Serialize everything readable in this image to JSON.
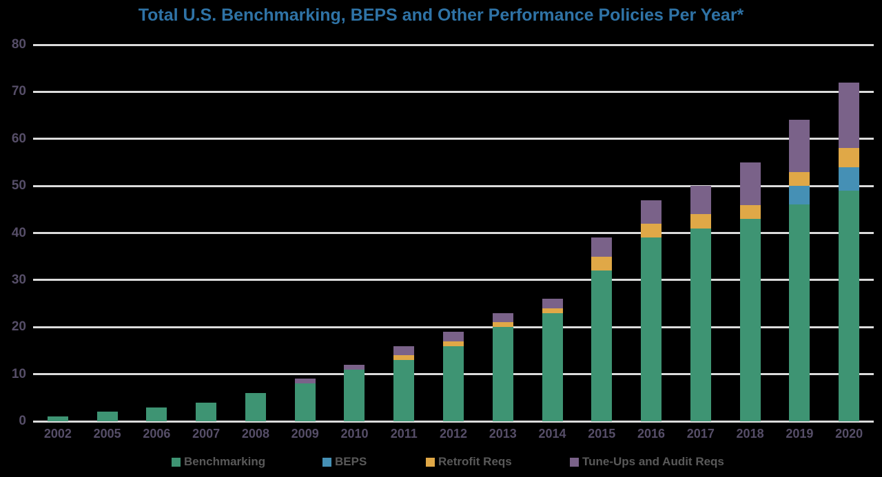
{
  "title": "Total U.S. Benchmarking, BEPS and Other Performance Policies Per Year*",
  "colors": {
    "background": "#000000",
    "title": "#2F73A6",
    "grid": "#DCDCDC",
    "axis_label": "#564E68",
    "legend_text": "#595959",
    "benchmarking": "#3E9473",
    "beps": "#4590B5",
    "retrofit": "#E0A847",
    "tuneups": "#7A6289"
  },
  "chart_data": {
    "type": "bar",
    "stacked": true,
    "title": "Total U.S. Benchmarking, BEPS and Other Performance Policies Per Year*",
    "xlabel": "",
    "ylabel": "",
    "ylim": [
      0,
      80
    ],
    "yticks": [
      0,
      10,
      20,
      30,
      40,
      50,
      60,
      70,
      80
    ],
    "grid": true,
    "legend_position": "bottom",
    "categories": [
      "2002",
      "2005",
      "2006",
      "2007",
      "2008",
      "2009",
      "2010",
      "2011",
      "2012",
      "2013",
      "2014",
      "2015",
      "2016",
      "2017",
      "2018",
      "2019",
      "2020"
    ],
    "series": [
      {
        "name": "Benchmarking",
        "color": "#3E9473",
        "values": [
          1,
          2,
          3,
          4,
          6,
          8,
          11,
          13,
          16,
          20,
          23,
          32,
          39,
          41,
          43,
          46,
          49
        ]
      },
      {
        "name": "BEPS",
        "color": "#4590B5",
        "values": [
          0,
          0,
          0,
          0,
          0,
          0,
          0,
          0,
          0,
          0,
          0,
          0,
          0,
          0,
          0,
          4,
          5
        ]
      },
      {
        "name": "Retrofit Reqs",
        "color": "#E0A847",
        "values": [
          0,
          0,
          0,
          0,
          0,
          0,
          0,
          1,
          1,
          1,
          1,
          3,
          3,
          3,
          3,
          3,
          4
        ]
      },
      {
        "name": "Tune-Ups and Audit Reqs",
        "color": "#7A6289",
        "values": [
          0,
          0,
          0,
          0,
          0,
          1,
          1,
          2,
          2,
          2,
          2,
          4,
          5,
          6,
          9,
          11,
          14
        ]
      }
    ],
    "totals": [
      1,
      2,
      3,
      4,
      6,
      9,
      12,
      16,
      19,
      23,
      26,
      39,
      47,
      50,
      55,
      64,
      72
    ]
  },
  "legend": {
    "items": [
      {
        "label": "Benchmarking",
        "color": "#3E9473"
      },
      {
        "label": "BEPS",
        "color": "#4590B5"
      },
      {
        "label": "Retrofit Reqs",
        "color": "#E0A847"
      },
      {
        "label": "Tune-Ups and Audit Reqs",
        "color": "#7A6289"
      }
    ]
  }
}
